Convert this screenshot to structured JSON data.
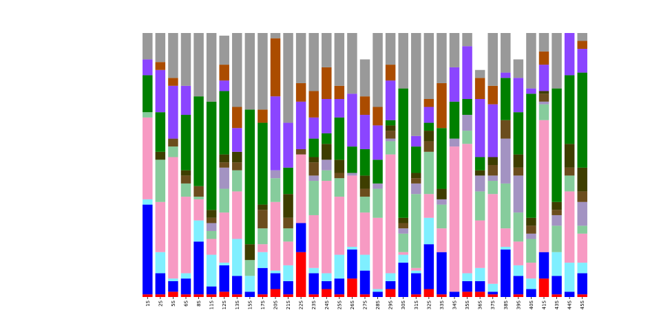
{
  "chart_data": {
    "type": "bar",
    "stacked": true,
    "normalized": true,
    "title": "",
    "xlabel": "",
    "ylabel": "",
    "ylim": [
      0,
      1
    ],
    "y_axis_visible": false,
    "grid": false,
    "legend": "none",
    "categories": [
      "1S",
      "2S",
      "5S",
      "6S",
      "8S",
      "11S",
      "12S",
      "13S",
      "15S",
      "17S",
      "20S",
      "21S",
      "22S",
      "23S",
      "24S",
      "25S",
      "26S",
      "27S",
      "28S",
      "29S",
      "30S",
      "31S",
      "32S",
      "33S",
      "34S",
      "35S",
      "36S",
      "37S",
      "38S",
      "39S",
      "40S",
      "41S",
      "43S",
      "44S",
      "45S"
    ],
    "colors": [
      "#ff0000",
      "#0000ff",
      "#7fefff",
      "#f79ac3",
      "#86cc9c",
      "#a393c2",
      "#6b4d1d",
      "#3e3e00",
      "#008000",
      "#8b45ff",
      "#ab4c00",
      "#999999"
    ],
    "series": [
      {
        "values": [
          0.01,
          0.01,
          0.02,
          0.01,
          0.01,
          0.01,
          0.02,
          0.01,
          0.0,
          0.01,
          0.03,
          0.01,
          0.17,
          0.01,
          0.03,
          0.01,
          0.07,
          0.01,
          0.0,
          0.03,
          0.0,
          0.01,
          0.03,
          0.01,
          0.0,
          0.02,
          0.02,
          0.01,
          0.0,
          0.01,
          0.0,
          0.07,
          0.01,
          0.0,
          0.01
        ]
      },
      {
        "values": [
          0.34,
          0.08,
          0.04,
          0.06,
          0.2,
          0.03,
          0.1,
          0.07,
          0.02,
          0.1,
          0.06,
          0.05,
          0.11,
          0.08,
          0.03,
          0.06,
          0.11,
          0.09,
          0.02,
          0.03,
          0.13,
          0.08,
          0.17,
          0.16,
          0.02,
          0.04,
          0.04,
          0.01,
          0.18,
          0.07,
          0.03,
          0.1,
          0.07,
          0.02,
          0.08
        ]
      },
      {
        "values": [
          0.02,
          0.08,
          0.01,
          0.02,
          0.08,
          0.12,
          0.01,
          0.14,
          0.06,
          0.06,
          0.01,
          0.06,
          0.0,
          0.02,
          0.03,
          0.09,
          0.01,
          0.06,
          0.01,
          0.03,
          0.03,
          0.01,
          0.1,
          0.0,
          0.0,
          0.03,
          0.05,
          0.03,
          0.01,
          0.04,
          0.04,
          0.0,
          0.09,
          0.11,
          0.04
        ]
      },
      {
        "values": [
          0.31,
          0.19,
          0.46,
          0.29,
          0.08,
          0.06,
          0.19,
          0.18,
          0.0,
          0.03,
          0.26,
          0.09,
          0.26,
          0.2,
          0.35,
          0.22,
          0.27,
          0.16,
          0.27,
          0.45,
          0.01,
          0.01,
          0.09,
          0.09,
          0.55,
          0.49,
          0.18,
          0.34,
          0.07,
          0.09,
          0.06,
          0.5,
          0.0,
          0.27,
          0.11
        ]
      },
      {
        "values": [
          0.02,
          0.16,
          0.04,
          0.05,
          0.01,
          0.03,
          0.09,
          0.08,
          0.06,
          0.06,
          0.09,
          0.05,
          0.0,
          0.13,
          0.04,
          0.07,
          0.0,
          0.06,
          0.11,
          0.05,
          0.07,
          0.28,
          0.16,
          0.09,
          0.0,
          0.05,
          0.11,
          0.05,
          0.17,
          0.11,
          0.09,
          0.06,
          0.1,
          0.06,
          0.03
        ]
      },
      {
        "values": [
          0.0,
          0.0,
          0.0,
          0.0,
          0.0,
          0.03,
          0.08,
          0.0,
          0.0,
          0.0,
          0.03,
          0.0,
          0.0,
          0.02,
          0.04,
          0.0,
          0.01,
          0.0,
          0.02,
          0.01,
          0.02,
          0.04,
          0.0,
          0.02,
          0.03,
          0.06,
          0.06,
          0.02,
          0.17,
          0.14,
          0.02,
          0.01,
          0.04,
          0.0,
          0.09
        ]
      },
      {
        "values": [
          0.0,
          0.0,
          0.03,
          0.03,
          0.04,
          0.02,
          0.02,
          0.03,
          0.0,
          0.07,
          0.0,
          0.04,
          0.02,
          0.05,
          0.0,
          0.02,
          0.0,
          0.03,
          0.0,
          0.03,
          0.02,
          0.02,
          0.04,
          0.0,
          0.0,
          0.0,
          0.0,
          0.04,
          0.07,
          0.03,
          0.03,
          0.03,
          0.02,
          0.03,
          0.04
        ]
      },
      {
        "values": [
          0.0,
          0.03,
          0.0,
          0.02,
          0.0,
          0.03,
          0.03,
          0.04,
          0.06,
          0.02,
          0.0,
          0.09,
          0.0,
          0.02,
          0.06,
          0.05,
          0.0,
          0.05,
          0.0,
          0.02,
          0.02,
          0.02,
          0.04,
          0.04,
          0.0,
          0.0,
          0.02,
          0.03,
          0.0,
          0.05,
          0.03,
          0.01,
          0.03,
          0.09,
          0.09
        ]
      },
      {
        "values": [
          0.14,
          0.15,
          0.0,
          0.21,
          0.34,
          0.41,
          0.24,
          0.0,
          0.51,
          0.31,
          0.0,
          0.1,
          0.0,
          0.07,
          0.04,
          0.16,
          0.1,
          0.1,
          0.09,
          0.02,
          0.49,
          0.1,
          0.03,
          0.23,
          0.14,
          0.06,
          0.05,
          0.0,
          0.16,
          0.16,
          0.47,
          0.0,
          0.43,
          0.26,
          0.36
        ]
      },
      {
        "values": [
          0.06,
          0.16,
          0.2,
          0.11,
          0.0,
          0.0,
          0.04,
          0.09,
          0.0,
          0.0,
          0.28,
          0.17,
          0.18,
          0.08,
          0.13,
          0.07,
          0.2,
          0.13,
          0.13,
          0.15,
          0.0,
          0.04,
          0.06,
          0.0,
          0.13,
          0.2,
          0.22,
          0.2,
          0.02,
          0.13,
          0.02,
          0.1,
          0.0,
          0.16,
          0.09
        ]
      },
      {
        "values": [
          0.0,
          0.03,
          0.03,
          0.0,
          0.0,
          0.0,
          0.06,
          0.08,
          0.0,
          0.05,
          0.22,
          0.0,
          0.07,
          0.1,
          0.12,
          0.05,
          0.0,
          0.07,
          0.07,
          0.06,
          0.0,
          0.0,
          0.03,
          0.17,
          0.0,
          0.0,
          0.08,
          0.07,
          0.0,
          0.0,
          0.0,
          0.05,
          0.0,
          0.03,
          0.03
        ]
      },
      {
        "values": [
          0.1,
          0.11,
          0.17,
          0.2,
          0.24,
          0.28,
          0.11,
          0.29,
          0.29,
          0.29,
          0.02,
          0.34,
          0.29,
          0.22,
          0.13,
          0.2,
          0.23,
          0.14,
          0.28,
          0.12,
          0.22,
          0.39,
          0.25,
          0.19,
          0.13,
          0.05,
          0.03,
          0.2,
          0.15,
          0.07,
          0.21,
          0.07,
          0.21,
          0.09,
          0.03
        ]
      }
    ]
  }
}
